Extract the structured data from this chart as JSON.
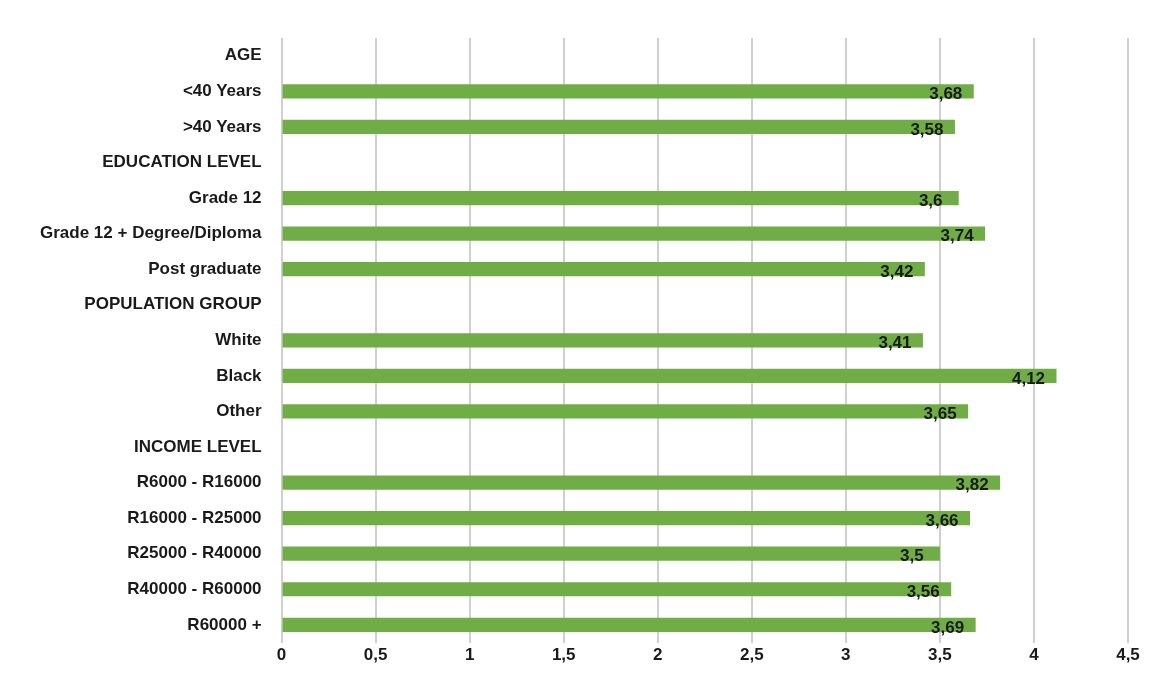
{
  "chart_data": {
    "type": "bar",
    "orientation": "horizontal",
    "categories": [
      "AGE",
      "<40 Years",
      ">40 Years",
      "EDUCATION LEVEL",
      "Grade 12",
      "Grade 12 + Degree/Diploma",
      "Post graduate",
      "POPULATION GROUP",
      "White",
      "Black",
      "Other",
      "INCOME LEVEL",
      "R6000 - R16000",
      "R16000 - R25000",
      "R25000 - R40000",
      "R40000 - R60000",
      "R60000 +"
    ],
    "values": [
      null,
      3.68,
      3.58,
      null,
      3.6,
      3.74,
      3.42,
      null,
      3.41,
      4.12,
      3.65,
      null,
      3.82,
      3.66,
      3.5,
      3.56,
      3.69
    ],
    "value_labels": [
      null,
      "3,68",
      "3,58",
      null,
      "3,6",
      "3,74",
      "3,42",
      null,
      "3,41",
      "4,12",
      "3,65",
      null,
      "3,82",
      "3,66",
      "3,5",
      "3,56",
      "3,69"
    ],
    "color": "#70ad47",
    "xlim": [
      0,
      4.5
    ],
    "xticks": [
      0,
      {
        "value": 0.5,
        "label": "0,5"
      },
      1,
      {
        "value": 1.5,
        "label": "1,5"
      },
      2,
      {
        "value": 2.5,
        "label": "2,5"
      },
      3,
      {
        "value": 3.5,
        "label": "3,5"
      },
      4,
      {
        "value": 4.5,
        "label": "4,5"
      }
    ],
    "grid": "x"
  }
}
